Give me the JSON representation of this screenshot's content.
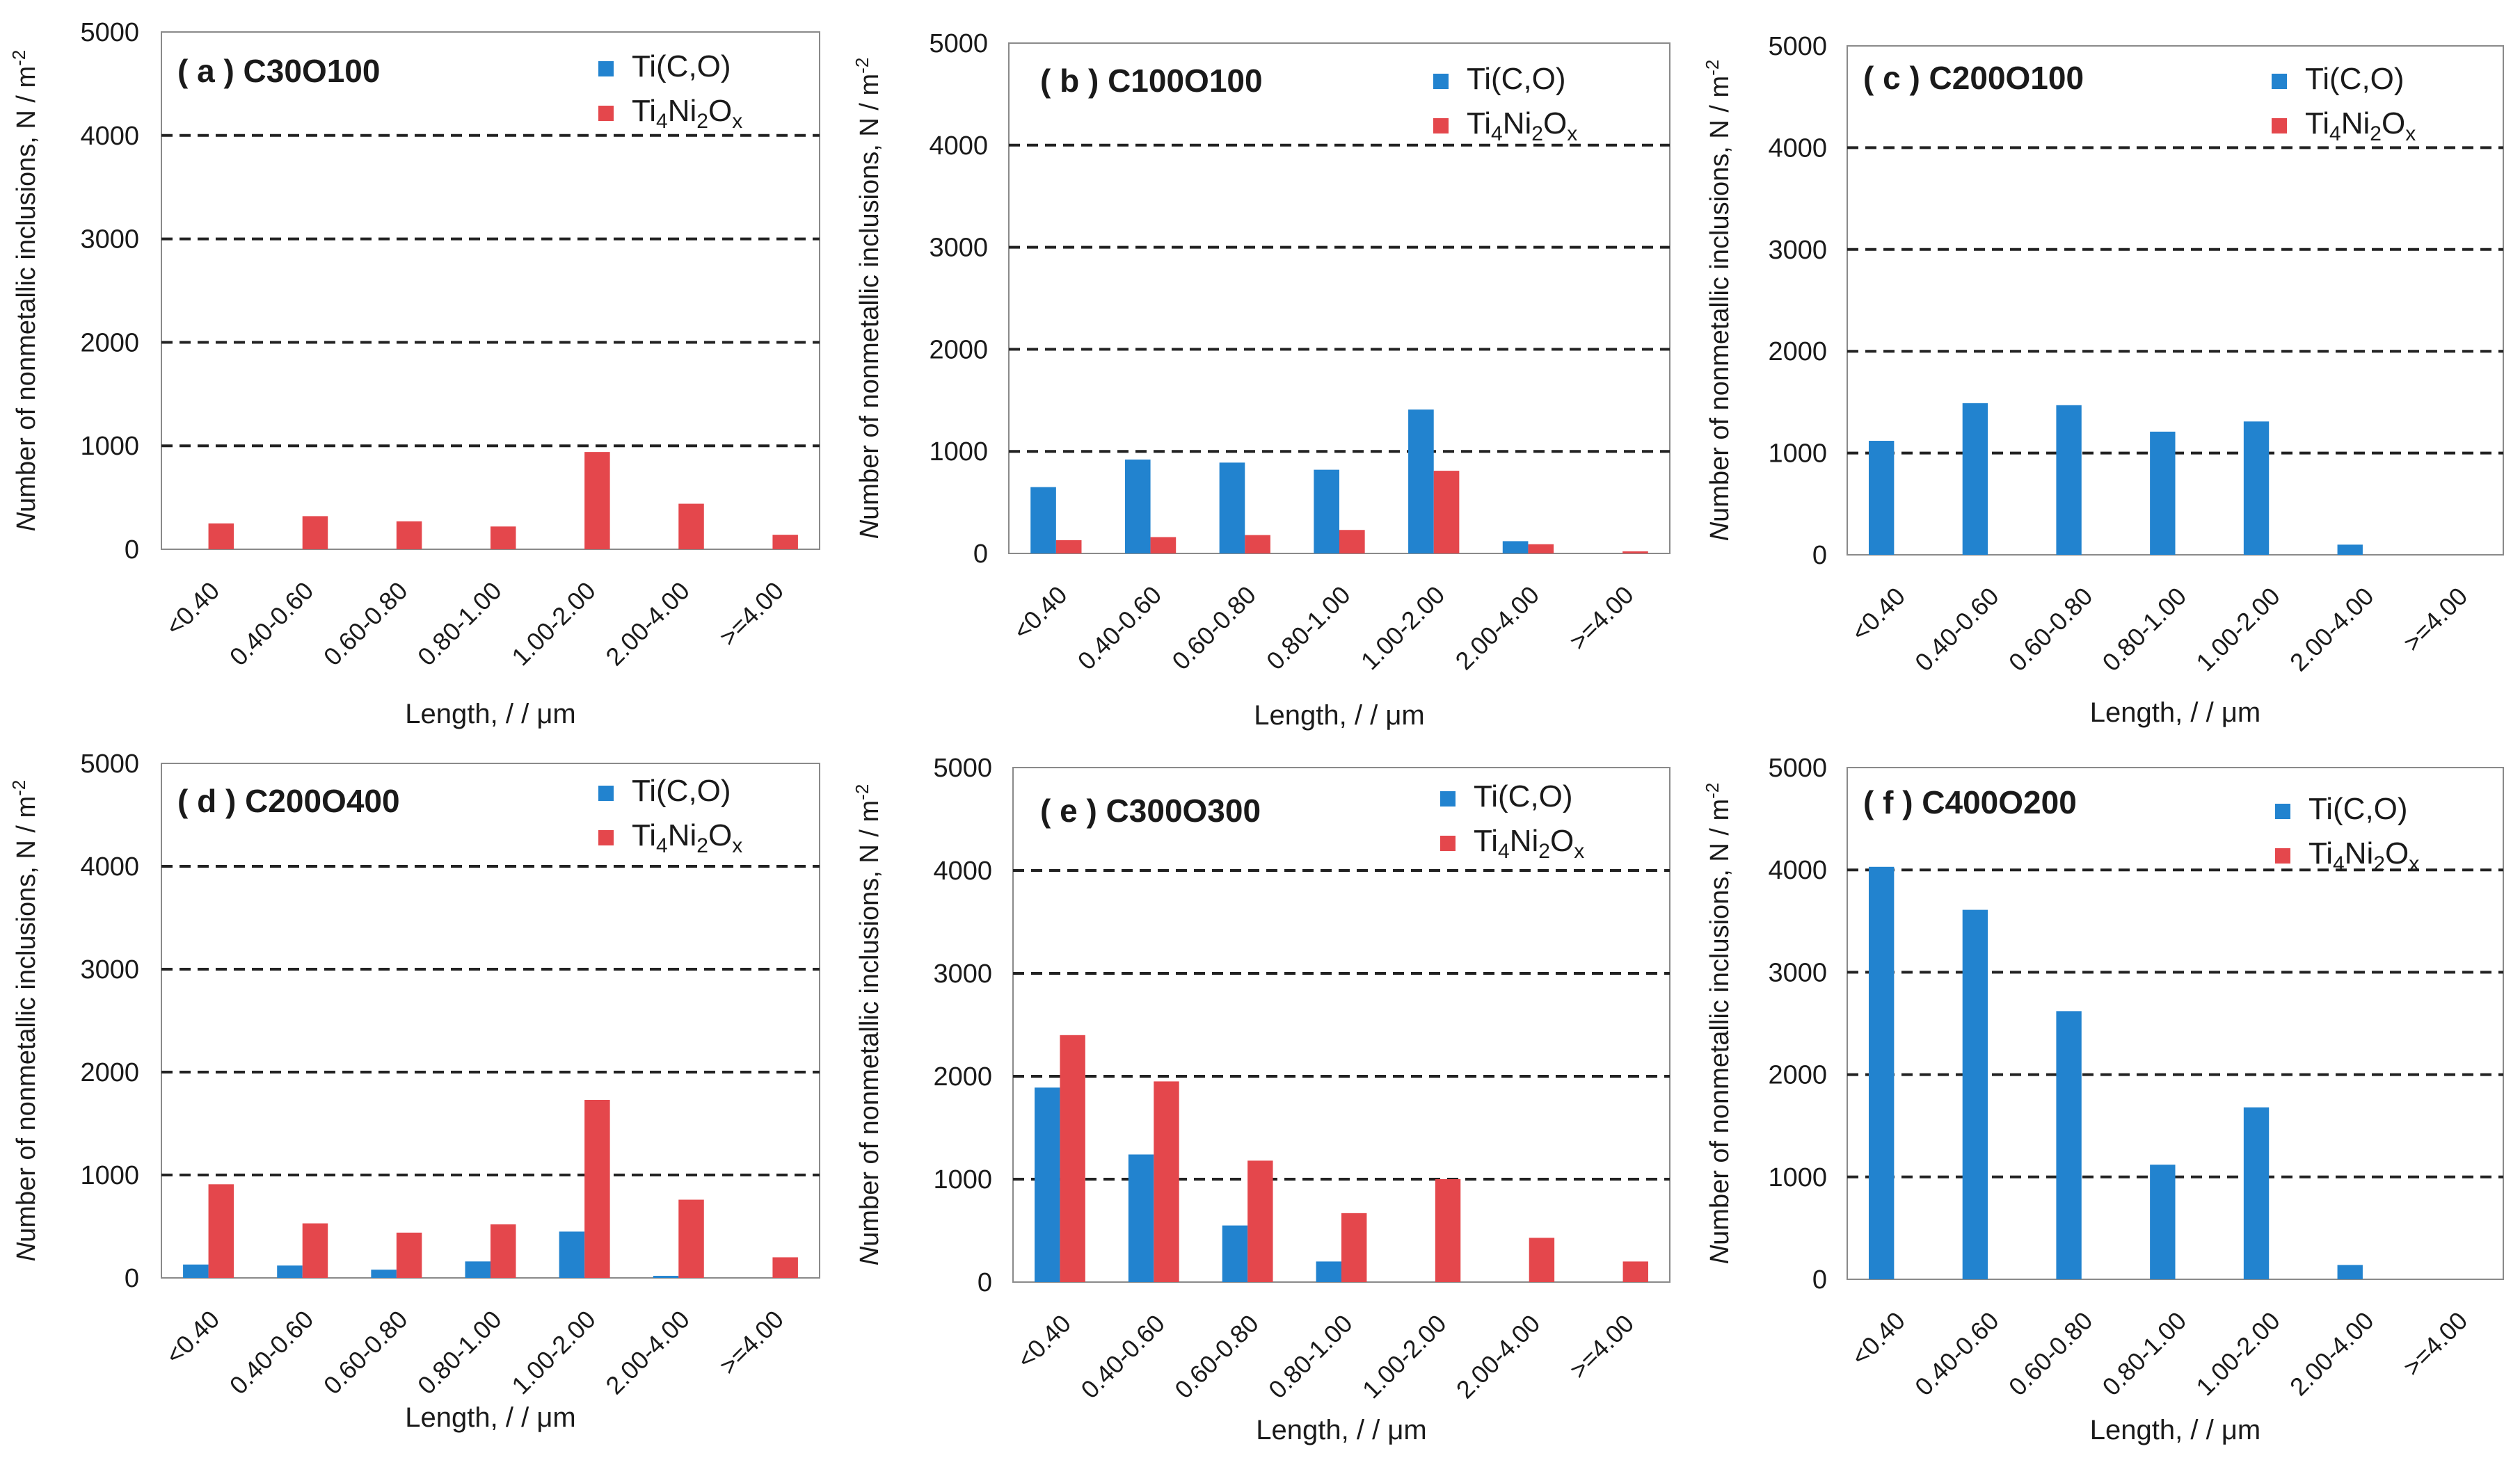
{
  "figure": {
    "categories": [
      "<0.40",
      "0.40-0.60",
      "0.60-0.80",
      "0.80-1.00",
      "1.00-2.00",
      "2.00-4.00",
      ">=4.00"
    ],
    "colors": {
      "tico": "#2283cf",
      "tinio": "#e4474c",
      "grid": "#222222",
      "axis": "#8a8a8a"
    }
  },
  "chart_data": [
    {
      "type": "bar",
      "panel_label": "( a ) C30O100",
      "title": "C30O100",
      "categories": [
        "<0.40",
        "0.40-0.60",
        "0.60-0.80",
        "0.80-1.00",
        "1.00-2.00",
        "2.00-4.00",
        ">=4.00"
      ],
      "series": [
        {
          "name": "Ti(C,O)",
          "values": [
            0,
            0,
            0,
            0,
            0,
            0,
            0
          ]
        },
        {
          "name": "Ti4Ni2Ox",
          "values": [
            250,
            320,
            270,
            220,
            940,
            440,
            140
          ]
        }
      ],
      "legend": [
        {
          "base": "Ti(C,O)",
          "sub1": "",
          "mid": "",
          "sub2": "",
          "end": ""
        },
        {
          "base": "Ti",
          "sub1": "4",
          "mid": "Ni",
          "sub2": "2",
          "end": "O",
          "sub3": "x"
        }
      ],
      "legend_position": "top-right",
      "xlabel": "Length, / / μm",
      "ylabel": "Number of nonmetallic inclusions, N / m",
      "ylabel_unit_exp": "-2",
      "yticks": [
        "0",
        "1000",
        "2000",
        "3000",
        "4000",
        "5000"
      ],
      "ylim": [
        0,
        5000
      ],
      "grid": "dashed"
    },
    {
      "type": "bar",
      "panel_label": "( b ) C100O100",
      "title": "C100O100",
      "categories": [
        "<0.40",
        "0.40-0.60",
        "0.60-0.80",
        "0.80-1.00",
        "1.00-2.00",
        "2.00-4.00",
        ">=4.00"
      ],
      "series": [
        {
          "name": "Ti(C,O)",
          "values": [
            650,
            920,
            890,
            820,
            1410,
            120,
            0
          ]
        },
        {
          "name": "Ti4Ni2Ox",
          "values": [
            130,
            160,
            180,
            230,
            810,
            90,
            20
          ]
        }
      ],
      "legend": [
        {
          "base": "Ti(C,O)",
          "sub1": "",
          "mid": "",
          "sub2": "",
          "end": ""
        },
        {
          "base": "Ti",
          "sub1": "4",
          "mid": "Ni",
          "sub2": "2",
          "end": "O",
          "sub3": "x"
        }
      ],
      "legend_position": "top-right",
      "xlabel": "Length, / / μm",
      "ylabel": "Number of nonmetallic inclusions, N / m",
      "ylabel_unit_exp": "-2",
      "yticks": [
        "0",
        "1000",
        "2000",
        "3000",
        "4000",
        "5000"
      ],
      "ylim": [
        0,
        5000
      ],
      "grid": "dashed"
    },
    {
      "type": "bar",
      "panel_label": "( c ) C200O100",
      "title": "C200O100",
      "categories": [
        "<0.40",
        "0.40-0.60",
        "0.60-0.80",
        "0.80-1.00",
        "1.00-2.00",
        "2.00-4.00",
        ">=4.00"
      ],
      "series": [
        {
          "name": "Ti(C,O)",
          "values": [
            1120,
            1490,
            1470,
            1210,
            1310,
            100,
            0
          ]
        },
        {
          "name": "Ti4Ni2Ox",
          "values": [
            0,
            0,
            0,
            0,
            0,
            0,
            0
          ]
        }
      ],
      "legend": [
        {
          "base": "Ti(C,O)",
          "sub1": "",
          "mid": "",
          "sub2": "",
          "end": ""
        },
        {
          "base": "Ti",
          "sub1": "4",
          "mid": "Ni",
          "sub2": "2",
          "end": "O",
          "sub3": "x"
        }
      ],
      "legend_position": "top-right",
      "xlabel": "Length, / / μm",
      "ylabel": "Number of nonmetallic inclusions, N / m",
      "ylabel_unit_exp": "-2",
      "yticks": [
        "0",
        "1000",
        "2000",
        "3000",
        "4000",
        "5000"
      ],
      "ylim": [
        0,
        5000
      ],
      "grid": "dashed"
    },
    {
      "type": "bar",
      "panel_label": "( d ) C200O400",
      "title": "C200O400",
      "categories": [
        "<0.40",
        "0.40-0.60",
        "0.60-0.80",
        "0.80-1.00",
        "1.00-2.00",
        "2.00-4.00",
        ">=4.00"
      ],
      "series": [
        {
          "name": "Ti(C,O)",
          "values": [
            130,
            120,
            80,
            160,
            450,
            20,
            0
          ]
        },
        {
          "name": "Ti4Ni2Ox",
          "values": [
            910,
            530,
            440,
            520,
            1730,
            760,
            200
          ]
        }
      ],
      "legend": [
        {
          "base": "Ti(C,O)",
          "sub1": "",
          "mid": "",
          "sub2": "",
          "end": ""
        },
        {
          "base": "Ti",
          "sub1": "4",
          "mid": "Ni",
          "sub2": "2",
          "end": "O",
          "sub3": "x"
        }
      ],
      "legend_position": "top-right",
      "xlabel": "Length, / / μm",
      "ylabel": "Number of  nonmetallic inclusions, N / m",
      "ylabel_unit_exp": "-2",
      "yticks": [
        "0",
        "1000",
        "2000",
        "3000",
        "4000",
        "5000"
      ],
      "ylim": [
        0,
        5000
      ],
      "grid": "dashed"
    },
    {
      "type": "bar",
      "panel_label": "( e ) C300O300",
      "title": "C300O300",
      "categories": [
        "<0.40",
        "0.40-0.60",
        "0.60-0.80",
        "0.80-1.00",
        "1.00-2.00",
        "2.00-4.00",
        ">=4.00"
      ],
      "series": [
        {
          "name": "Ti(C,O)",
          "values": [
            1890,
            1240,
            550,
            200,
            0,
            0,
            0
          ]
        },
        {
          "name": "Ti4Ni2Ox",
          "values": [
            2400,
            1950,
            1180,
            670,
            1000,
            430,
            200
          ]
        }
      ],
      "legend": [
        {
          "base": "Ti(C,O)",
          "sub1": "",
          "mid": "",
          "sub2": "",
          "end": ""
        },
        {
          "base": "Ti",
          "sub1": "4",
          "mid": "Ni",
          "sub2": "2",
          "end": "O",
          "sub3": "x"
        }
      ],
      "legend_position": "top-right",
      "xlabel": "Length, / / μm",
      "ylabel": "Number of nonmetallic inclusions,  N / m",
      "ylabel_unit_exp": "-2",
      "yticks": [
        "0",
        "1000",
        "2000",
        "3000",
        "4000",
        "5000"
      ],
      "ylim": [
        0,
        5000
      ],
      "grid": "dashed"
    },
    {
      "type": "bar",
      "panel_label": "( f ) C400O200",
      "title": "C400O200",
      "categories": [
        "<0.40",
        "0.40-0.60",
        "0.60-0.80",
        "0.80-1.00",
        "1.00-2.00",
        "2.00-4.00",
        ">=4.00"
      ],
      "series": [
        {
          "name": "Ti(C,O)",
          "values": [
            4030,
            3610,
            2620,
            1120,
            1680,
            140,
            0
          ]
        },
        {
          "name": "Ti4Ni2Ox",
          "values": [
            0,
            0,
            0,
            0,
            0,
            0,
            0
          ]
        }
      ],
      "legend": [
        {
          "base": "Ti(C,O)",
          "sub1": "",
          "mid": "",
          "sub2": "",
          "end": ""
        },
        {
          "base": "Ti",
          "sub1": "4",
          "mid": "Ni",
          "sub2": "2",
          "end": "O",
          "sub3": "x"
        }
      ],
      "legend_position": "top-right",
      "xlabel": "Length, / /  μm",
      "ylabel": "Number of nonmetallic inclusions, N / m",
      "ylabel_unit_exp": "-2",
      "yticks": [
        "0",
        "1000",
        "2000",
        "3000",
        "4000",
        "5000"
      ],
      "ylim": [
        0,
        5000
      ],
      "grid": "dashed"
    }
  ]
}
